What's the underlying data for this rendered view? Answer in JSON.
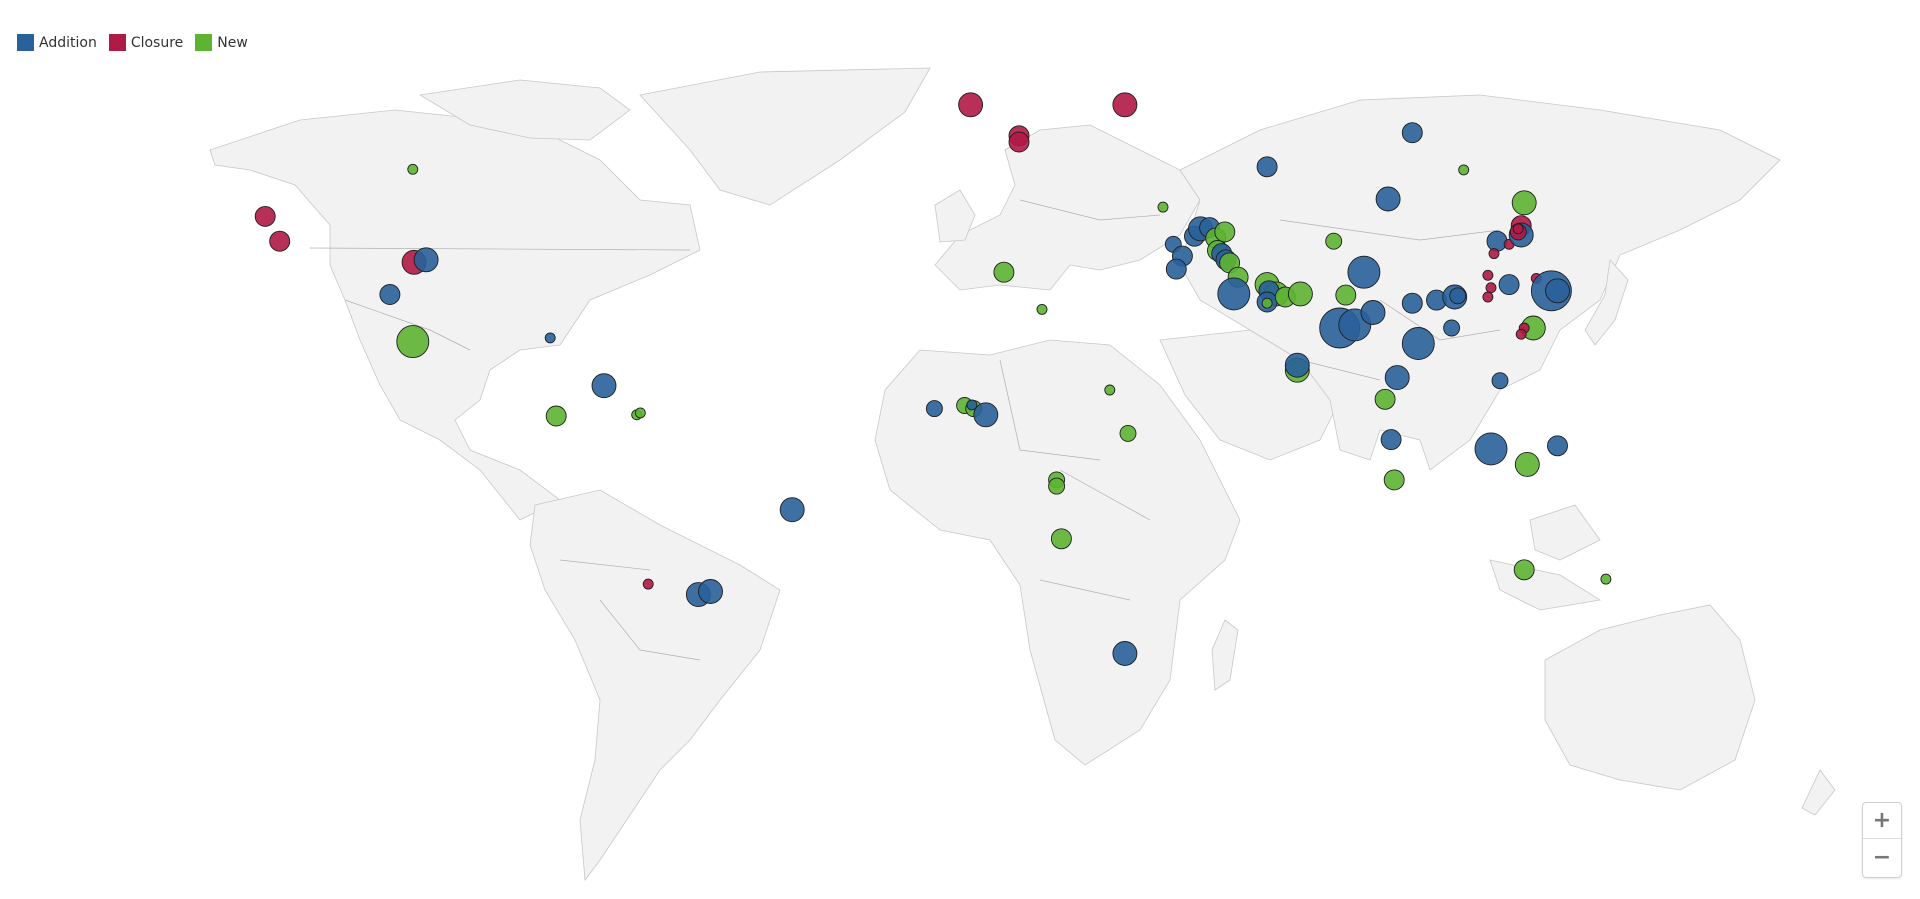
{
  "legend": {
    "items": [
      {
        "label": "Addition",
        "color": "#29619a",
        "key": "addition"
      },
      {
        "label": "Closure",
        "color": "#b01a46",
        "key": "closure"
      },
      {
        "label": "New",
        "color": "#5db432",
        "key": "new"
      }
    ]
  },
  "controls": {
    "zoom_in_label": "+",
    "zoom_out_label": "−"
  },
  "map": {
    "land_color": "#f2f2f2",
    "border_color": "#bdbdbd",
    "projection": "equirectangular"
  },
  "markers": [
    {
      "lon": -123.6,
      "lat": 38.0,
      "type": "closure",
      "size": 3
    },
    {
      "lon": -121.2,
      "lat": 34.0,
      "type": "closure",
      "size": 3
    },
    {
      "lon": -99.2,
      "lat": 45.6,
      "type": "new",
      "size": 1
    },
    {
      "lon": -99.0,
      "lat": 30.6,
      "type": "closure",
      "size": 4
    },
    {
      "lon": -97.0,
      "lat": 31.0,
      "type": "addition",
      "size": 4
    },
    {
      "lon": -103.0,
      "lat": 25.4,
      "type": "addition",
      "size": 3
    },
    {
      "lon": -99.2,
      "lat": 17.8,
      "type": "new",
      "size": 5
    },
    {
      "lon": -76.5,
      "lat": 18.4,
      "type": "addition",
      "size": 1
    },
    {
      "lon": -67.6,
      "lat": 10.7,
      "type": "addition",
      "size": 4
    },
    {
      "lon": -75.5,
      "lat": 5.8,
      "type": "new",
      "size": 3
    },
    {
      "lon": -62.2,
      "lat": 6.0,
      "type": "new",
      "size": 1
    },
    {
      "lon": -61.6,
      "lat": 6.3,
      "type": "new",
      "size": 1
    },
    {
      "lon": -36.5,
      "lat": -9.3,
      "type": "addition",
      "size": 4
    },
    {
      "lon": -52.0,
      "lat": -23.0,
      "type": "addition",
      "size": 4
    },
    {
      "lon": -50.0,
      "lat": -22.5,
      "type": "addition",
      "size": 4
    },
    {
      "lon": -60.3,
      "lat": -21.3,
      "type": "closure",
      "size": 1
    },
    {
      "lon": -7.0,
      "lat": 56.0,
      "type": "closure",
      "size": 4
    },
    {
      "lon": 1.0,
      "lat": 51.0,
      "type": "closure",
      "size": 3
    },
    {
      "lon": 1.0,
      "lat": 50.0,
      "type": "closure",
      "size": 3
    },
    {
      "lon": 18.5,
      "lat": 56.0,
      "type": "closure",
      "size": 4
    },
    {
      "lon": -1.5,
      "lat": 29.0,
      "type": "new",
      "size": 3
    },
    {
      "lon": 4.8,
      "lat": 23.0,
      "type": "new",
      "size": 1
    },
    {
      "lon": -13.0,
      "lat": 7.0,
      "type": "addition",
      "size": 2
    },
    {
      "lon": -8.0,
      "lat": 7.5,
      "type": "new",
      "size": 2
    },
    {
      "lon": -6.5,
      "lat": 7.0,
      "type": "new",
      "size": 2
    },
    {
      "lon": -6.8,
      "lat": 7.6,
      "type": "addition",
      "size": 1
    },
    {
      "lon": -4.5,
      "lat": 6.0,
      "type": "addition",
      "size": 4
    },
    {
      "lon": 16.0,
      "lat": 10.0,
      "type": "new",
      "size": 1
    },
    {
      "lon": 19.0,
      "lat": 3.0,
      "type": "new",
      "size": 2
    },
    {
      "lon": 7.2,
      "lat": -4.5,
      "type": "new",
      "size": 2
    },
    {
      "lon": 7.2,
      "lat": -5.5,
      "type": "new",
      "size": 2
    },
    {
      "lon": 8.0,
      "lat": -14.0,
      "type": "new",
      "size": 3
    },
    {
      "lon": 18.5,
      "lat": -32.5,
      "type": "addition",
      "size": 4
    },
    {
      "lon": 24.8,
      "lat": 39.5,
      "type": "new",
      "size": 1
    },
    {
      "lon": 42.0,
      "lat": 46.0,
      "type": "addition",
      "size": 3
    },
    {
      "lon": 66.0,
      "lat": 51.5,
      "type": "addition",
      "size": 3
    },
    {
      "lon": 62.0,
      "lat": 40.8,
      "type": "addition",
      "size": 4
    },
    {
      "lon": 26.5,
      "lat": 33.5,
      "type": "addition",
      "size": 2
    },
    {
      "lon": 30.0,
      "lat": 34.8,
      "type": "addition",
      "size": 3
    },
    {
      "lon": 28.0,
      "lat": 31.6,
      "type": "addition",
      "size": 3
    },
    {
      "lon": 27.0,
      "lat": 29.5,
      "type": "addition",
      "size": 3
    },
    {
      "lon": 31.0,
      "lat": 36.0,
      "type": "addition",
      "size": 4
    },
    {
      "lon": 32.5,
      "lat": 36.2,
      "type": "addition",
      "size": 3
    },
    {
      "lon": 33.5,
      "lat": 34.5,
      "type": "new",
      "size": 3
    },
    {
      "lon": 35.0,
      "lat": 35.5,
      "type": "new",
      "size": 3
    },
    {
      "lon": 33.8,
      "lat": 32.5,
      "type": "new",
      "size": 3
    },
    {
      "lon": 34.5,
      "lat": 32.0,
      "type": "addition",
      "size": 3
    },
    {
      "lon": 35.2,
      "lat": 31.0,
      "type": "addition",
      "size": 3
    },
    {
      "lon": 35.8,
      "lat": 30.5,
      "type": "new",
      "size": 3
    },
    {
      "lon": 37.2,
      "lat": 28.2,
      "type": "new",
      "size": 3
    },
    {
      "lon": 36.5,
      "lat": 25.5,
      "type": "addition",
      "size": 5
    },
    {
      "lon": 42.0,
      "lat": 27.0,
      "type": "new",
      "size": 4
    },
    {
      "lon": 43.5,
      "lat": 25.5,
      "type": "new",
      "size": 4
    },
    {
      "lon": 42.3,
      "lat": 26.0,
      "type": "addition",
      "size": 3
    },
    {
      "lon": 42.0,
      "lat": 24.2,
      "type": "addition",
      "size": 3
    },
    {
      "lon": 42.0,
      "lat": 24.0,
      "type": "new",
      "size": 1
    },
    {
      "lon": 45.0,
      "lat": 25.0,
      "type": "new",
      "size": 3
    },
    {
      "lon": 47.5,
      "lat": 25.5,
      "type": "new",
      "size": 4
    },
    {
      "lon": 47.0,
      "lat": 13.2,
      "type": "new",
      "size": 4
    },
    {
      "lon": 47.0,
      "lat": 14.0,
      "type": "addition",
      "size": 4
    },
    {
      "lon": 53.0,
      "lat": 34.0,
      "type": "new",
      "size": 2
    },
    {
      "lon": 55.0,
      "lat": 25.3,
      "type": "new",
      "size": 3
    },
    {
      "lon": 54.0,
      "lat": 20.0,
      "type": "addition",
      "size": 6
    },
    {
      "lon": 56.5,
      "lat": 20.5,
      "type": "addition",
      "size": 5
    },
    {
      "lon": 59.5,
      "lat": 22.5,
      "type": "addition",
      "size": 4
    },
    {
      "lon": 58.0,
      "lat": 29.0,
      "type": "addition",
      "size": 5
    },
    {
      "lon": 63.5,
      "lat": 12.0,
      "type": "addition",
      "size": 4
    },
    {
      "lon": 67.0,
      "lat": 17.5,
      "type": "addition",
      "size": 5
    },
    {
      "lon": 61.5,
      "lat": 8.5,
      "type": "new",
      "size": 3
    },
    {
      "lon": 62.5,
      "lat": 2.0,
      "type": "addition",
      "size": 3
    },
    {
      "lon": 63.0,
      "lat": -4.5,
      "type": "new",
      "size": 3
    },
    {
      "lon": 66.0,
      "lat": 24.0,
      "type": "addition",
      "size": 3
    },
    {
      "lon": 70.0,
      "lat": 24.5,
      "type": "addition",
      "size": 3
    },
    {
      "lon": 73.0,
      "lat": 25.0,
      "type": "addition",
      "size": 4
    },
    {
      "lon": 72.5,
      "lat": 20.0,
      "type": "addition",
      "size": 2
    },
    {
      "lon": 73.5,
      "lat": 25.2,
      "type": "addition",
      "size": 2
    },
    {
      "lon": 74.5,
      "lat": 45.5,
      "type": "new",
      "size": 1
    },
    {
      "lon": 80.0,
      "lat": 34.0,
      "type": "addition",
      "size": 3
    },
    {
      "lon": 80.5,
      "lat": 11.5,
      "type": "addition",
      "size": 2
    },
    {
      "lon": 79.0,
      "lat": 0.5,
      "type": "addition",
      "size": 5
    },
    {
      "lon": 85.0,
      "lat": -2.0,
      "type": "new",
      "size": 4
    },
    {
      "lon": 79.5,
      "lat": 32.0,
      "type": "closure",
      "size": 1
    },
    {
      "lon": 82.0,
      "lat": 33.5,
      "type": "closure",
      "size": 1
    },
    {
      "lon": 78.5,
      "lat": 28.5,
      "type": "closure",
      "size": 1
    },
    {
      "lon": 79.0,
      "lat": 26.5,
      "type": "closure",
      "size": 1
    },
    {
      "lon": 78.5,
      "lat": 25.0,
      "type": "closure",
      "size": 1
    },
    {
      "lon": 84.0,
      "lat": 36.5,
      "type": "closure",
      "size": 3
    },
    {
      "lon": 84.0,
      "lat": 35.0,
      "type": "addition",
      "size": 4
    },
    {
      "lon": 83.5,
      "lat": 35.5,
      "type": "closure",
      "size": 2
    },
    {
      "lon": 83.5,
      "lat": 36.0,
      "type": "closure",
      "size": 1
    },
    {
      "lon": 84.5,
      "lat": 40.2,
      "type": "new",
      "size": 4
    },
    {
      "lon": 86.5,
      "lat": 28.0,
      "type": "closure",
      "size": 1
    },
    {
      "lon": 89.0,
      "lat": 26.0,
      "type": "addition",
      "size": 6
    },
    {
      "lon": 90.0,
      "lat": 26.0,
      "type": "addition",
      "size": 4
    },
    {
      "lon": 82.0,
      "lat": 27.0,
      "type": "addition",
      "size": 3
    },
    {
      "lon": 86.0,
      "lat": 20.0,
      "type": "new",
      "size": 4
    },
    {
      "lon": 84.5,
      "lat": 20.0,
      "type": "closure",
      "size": 1
    },
    {
      "lon": 84.0,
      "lat": 19.0,
      "type": "closure",
      "size": 1
    },
    {
      "lon": 90.0,
      "lat": 1.0,
      "type": "addition",
      "size": 3
    },
    {
      "lon": 84.5,
      "lat": -19.0,
      "type": "new",
      "size": 3
    },
    {
      "lon": 98.0,
      "lat": -20.5,
      "type": "new",
      "size": 1
    }
  ]
}
